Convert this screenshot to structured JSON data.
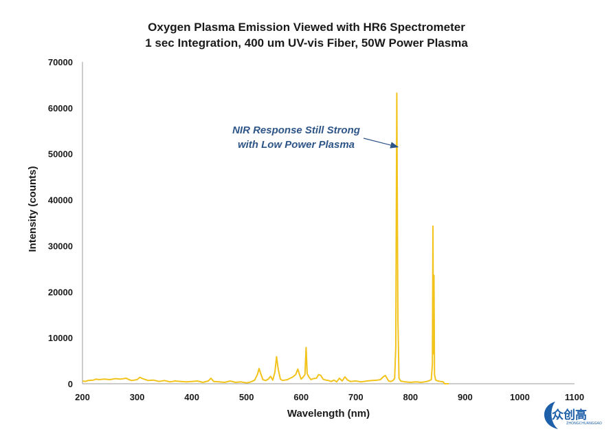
{
  "chart_data": {
    "type": "line",
    "title": "Oxygen Plasma Emission Viewed with HR6 Spectrometer",
    "subtitle": "1 sec Integration, 400 um UV-vis Fiber, 50W Power Plasma",
    "xlabel": "Wavelength (nm)",
    "ylabel": "Intensity (counts)",
    "xlim": [
      200,
      1100
    ],
    "ylim": [
      0,
      70000
    ],
    "x_ticks": [
      "200",
      "300",
      "400",
      "500",
      "600",
      "700",
      "800",
      "900",
      "1000",
      "1100"
    ],
    "y_ticks": [
      "0",
      "10000",
      "20000",
      "30000",
      "40000",
      "50000",
      "60000",
      "70000"
    ],
    "grid": false,
    "legend": "none",
    "line_color": "#F2C31B",
    "series": [
      {
        "x": [
          200,
          205,
          210,
          220,
          225,
          230,
          240,
          250,
          260,
          270,
          280,
          285,
          290,
          300,
          305,
          310,
          320,
          330,
          340,
          350,
          360,
          370,
          380,
          390,
          400,
          410,
          420,
          430,
          435,
          440,
          450,
          460,
          470,
          480,
          490,
          500,
          505,
          510,
          515,
          520,
          523,
          526,
          530,
          535,
          540,
          544,
          548,
          552,
          555,
          558,
          562,
          566,
          570,
          575,
          580,
          585,
          590,
          594,
          597,
          600,
          604,
          607,
          609,
          611,
          614,
          618,
          622,
          628,
          632,
          636,
          640,
          645,
          650,
          655,
          660,
          665,
          670,
          675,
          680,
          685,
          690,
          700,
          710,
          720,
          730,
          740,
          745,
          750,
          754,
          757,
          760,
          764,
          768,
          771,
          773,
          775,
          777,
          779,
          782,
          786,
          790,
          800,
          810,
          820,
          830,
          835,
          838,
          840,
          841,
          842,
          843,
          844,
          846,
          850,
          855,
          860,
          862,
          870
        ],
        "y": [
          600,
          500,
          700,
          800,
          1000,
          900,
          1000,
          900,
          1100,
          1000,
          1200,
          900,
          700,
          900,
          1400,
          1100,
          700,
          800,
          500,
          700,
          400,
          600,
          500,
          400,
          500,
          600,
          300,
          600,
          1200,
          500,
          400,
          300,
          600,
          300,
          400,
          200,
          300,
          500,
          800,
          2000,
          3300,
          2200,
          900,
          700,
          1000,
          1600,
          800,
          2500,
          5900,
          3200,
          1000,
          700,
          800,
          900,
          1200,
          1500,
          2000,
          3200,
          2000,
          1000,
          1500,
          2000,
          7900,
          2200,
          1500,
          900,
          1100,
          1200,
          2000,
          1800,
          1000,
          800,
          700,
          500,
          800,
          400,
          1200,
          600,
          1500,
          800,
          500,
          600,
          400,
          600,
          700,
          800,
          900,
          1500,
          1800,
          1200,
          600,
          500,
          700,
          1200,
          8000,
          63200,
          14000,
          1200,
          600,
          500,
          400,
          300,
          400,
          300,
          500,
          700,
          900,
          4300,
          34300,
          6500,
          23600,
          2000,
          800,
          600,
          500,
          400,
          0,
          0
        ]
      }
    ],
    "annotation": {
      "text_line1": "NIR Response Still Strong",
      "text_line2": "with Low Power Plasma",
      "color": "#2E5587",
      "arrow_to_x": 777,
      "arrow_to_y": 51500
    }
  },
  "watermark": {
    "main": "众创高",
    "sub": "ZHONGCHUANGGAO",
    "color": "#1D5FA8"
  }
}
